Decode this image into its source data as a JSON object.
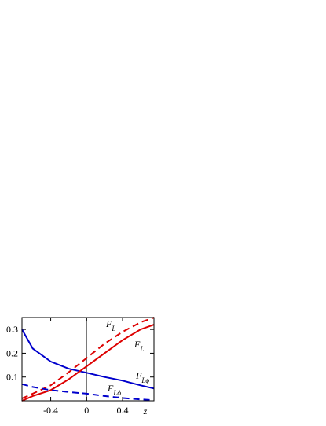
{
  "chart_data": {
    "type": "line",
    "x_label": "z",
    "x": [
      -0.72,
      -0.6,
      -0.4,
      -0.2,
      0,
      0.2,
      0.4,
      0.6,
      0.75
    ],
    "series": [
      {
        "color": "#0000cc",
        "dash": false,
        "values": [
          0.3,
          0.22,
          0.165,
          0.135,
          0.118,
          0.1,
          0.085,
          0.065,
          0.052
        ]
      },
      {
        "color": "#dd0000",
        "dash": false,
        "values": [
          0.0,
          0.02,
          0.045,
          0.09,
          0.145,
          0.2,
          0.255,
          0.3,
          0.32
        ]
      },
      {
        "color": "#dd0000",
        "dash": true,
        "values": [
          0.01,
          0.03,
          0.065,
          0.12,
          0.18,
          0.24,
          0.29,
          0.33,
          0.35
        ]
      },
      {
        "color": "#0000cc",
        "dash": true,
        "values": [
          0.07,
          0.058,
          0.045,
          0.037,
          0.03,
          0.02,
          0.012,
          0.006,
          0.003
        ]
      }
    ],
    "annotations": [
      {
        "text": "F",
        "sub": "L"
      },
      {
        "text": "F",
        "sub": "L"
      },
      {
        "text": "F",
        "sub": "Lϕ"
      },
      {
        "text": "F",
        "sub": "Lϕ"
      }
    ],
    "xlim": [
      -0.72,
      0.75
    ],
    "ylim": [
      0,
      0.35
    ],
    "xticks": [
      -0.4,
      0,
      0.4
    ],
    "yticks": [
      0.1,
      0.2,
      0.3
    ]
  }
}
